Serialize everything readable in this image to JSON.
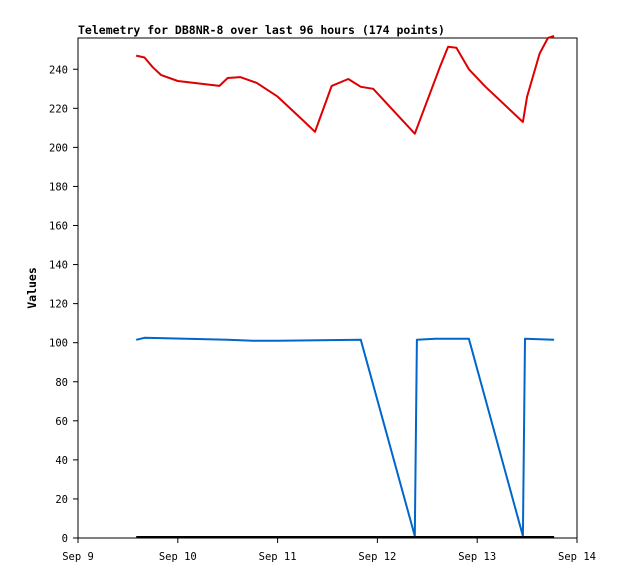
{
  "chart_data": {
    "type": "line",
    "title": "Telemetry for DB8NR-8 over last 96 hours (174 points)",
    "xlabel": "",
    "ylabel": "Values",
    "x_ticks": [
      "Sep 9",
      "Sep 10",
      "Sep 11",
      "Sep 12",
      "Sep 13",
      "Sep 14"
    ],
    "y_ticks": [
      0,
      20,
      40,
      60,
      80,
      100,
      120,
      140,
      160,
      180,
      200,
      220,
      240
    ],
    "xlim": [
      "2023-09-09T00:00",
      "2023-09-14T00:00"
    ],
    "ylim": [
      0,
      256
    ],
    "grid": false,
    "legend": "none",
    "series": [
      {
        "color": "#dd0000",
        "points": [
          [
            "2023-09-09T14:00",
            247
          ],
          [
            "2023-09-09T16:00",
            246
          ],
          [
            "2023-09-09T18:00",
            241
          ],
          [
            "2023-09-09T20:00",
            237
          ],
          [
            "2023-09-10T00:00",
            234
          ],
          [
            "2023-09-10T10:00",
            231.5
          ],
          [
            "2023-09-10T12:00",
            235.5
          ],
          [
            "2023-09-10T15:00",
            236
          ],
          [
            "2023-09-10T19:00",
            233
          ],
          [
            "2023-09-11T00:00",
            226
          ],
          [
            "2023-09-11T06:00",
            214
          ],
          [
            "2023-09-11T09:00",
            208
          ],
          [
            "2023-09-11T13:00",
            231.5
          ],
          [
            "2023-09-11T17:00",
            235
          ],
          [
            "2023-09-11T20:00",
            231
          ],
          [
            "2023-09-11T23:00",
            230
          ],
          [
            "2023-09-12T09:00",
            207
          ],
          [
            "2023-09-12T15:00",
            241
          ],
          [
            "2023-09-12T17:00",
            251.5
          ],
          [
            "2023-09-12T19:00",
            251
          ],
          [
            "2023-09-12T22:00",
            240
          ],
          [
            "2023-09-13T02:00",
            231
          ],
          [
            "2023-09-13T11:00",
            213
          ],
          [
            "2023-09-13T12:00",
            226
          ],
          [
            "2023-09-13T15:00",
            248
          ],
          [
            "2023-09-13T17:00",
            256
          ],
          [
            "2023-09-13T18:30",
            257
          ]
        ]
      },
      {
        "color": "#0066cc",
        "points": [
          [
            "2023-09-09T14:00",
            101.5
          ],
          [
            "2023-09-09T16:00",
            102.5
          ],
          [
            "2023-09-10T12:00",
            101.5
          ],
          [
            "2023-09-10T18:00",
            101
          ],
          [
            "2023-09-11T00:00",
            101
          ],
          [
            "2023-09-11T20:00",
            101.5
          ],
          [
            "2023-09-12T09:00",
            1
          ],
          [
            "2023-09-12T09:30",
            101.5
          ],
          [
            "2023-09-12T14:00",
            102
          ],
          [
            "2023-09-12T22:00",
            102
          ],
          [
            "2023-09-13T11:00",
            1
          ],
          [
            "2023-09-13T11:30",
            102
          ],
          [
            "2023-09-13T18:30",
            101.5
          ]
        ]
      },
      {
        "color": "#000000",
        "points": [
          [
            "2023-09-09T14:00",
            0.5
          ],
          [
            "2023-09-13T18:30",
            0.5
          ]
        ]
      }
    ]
  }
}
